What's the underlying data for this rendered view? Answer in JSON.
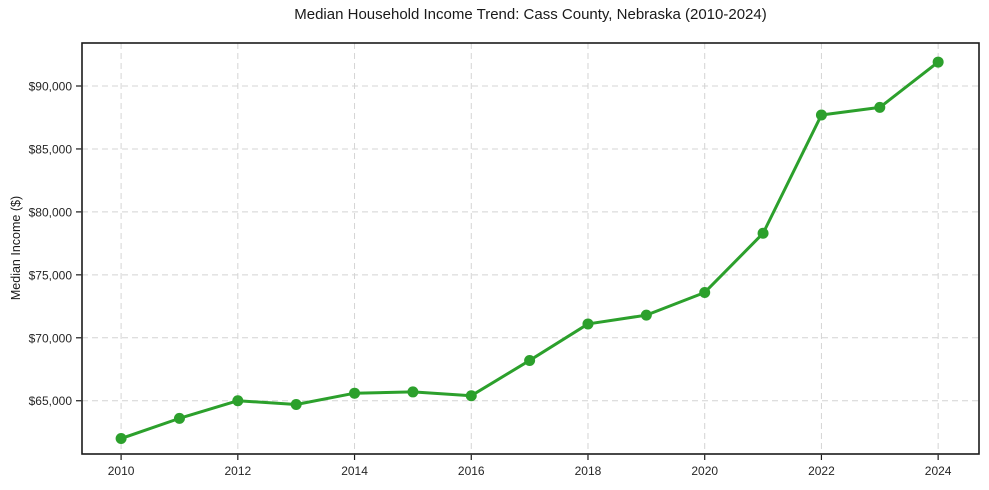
{
  "page": {
    "background": "#ffffff"
  },
  "chart_data": {
    "type": "line",
    "title": "Median Household Income Trend: Cass County, Nebraska (2010-2024)",
    "xlabel": "",
    "ylabel": "Median Income ($)",
    "x": [
      2010,
      2011,
      2012,
      2013,
      2014,
      2015,
      2016,
      2017,
      2018,
      2019,
      2020,
      2021,
      2022,
      2023,
      2024
    ],
    "values": [
      62000,
      63600,
      65000,
      64700,
      65600,
      65700,
      65400,
      68200,
      71100,
      71800,
      73600,
      78300,
      87700,
      88300,
      91900
    ],
    "xlim": [
      2009.33,
      2024.7
    ],
    "ylim": [
      60770,
      93415
    ],
    "x_ticks": [
      2010,
      2012,
      2014,
      2016,
      2018,
      2020,
      2022,
      2024
    ],
    "x_tick_labels": [
      "2010",
      "2012",
      "2014",
      "2016",
      "2018",
      "2020",
      "2022",
      "2024"
    ],
    "y_ticks": [
      65000,
      70000,
      75000,
      80000,
      85000,
      90000
    ],
    "y_tick_labels": [
      "$65,000",
      "$70,000",
      "$75,000",
      "$80,000",
      "$85,000",
      "$90,000"
    ],
    "grid": true,
    "grid_style": "dashed",
    "legend": false,
    "line_color": "#2ca02c",
    "marker_color": "#2ca02c",
    "marker": "circle",
    "grid_color": "#d4d4d4",
    "axis_color": "#1a1a1a",
    "tick_label_color": "#262626"
  }
}
